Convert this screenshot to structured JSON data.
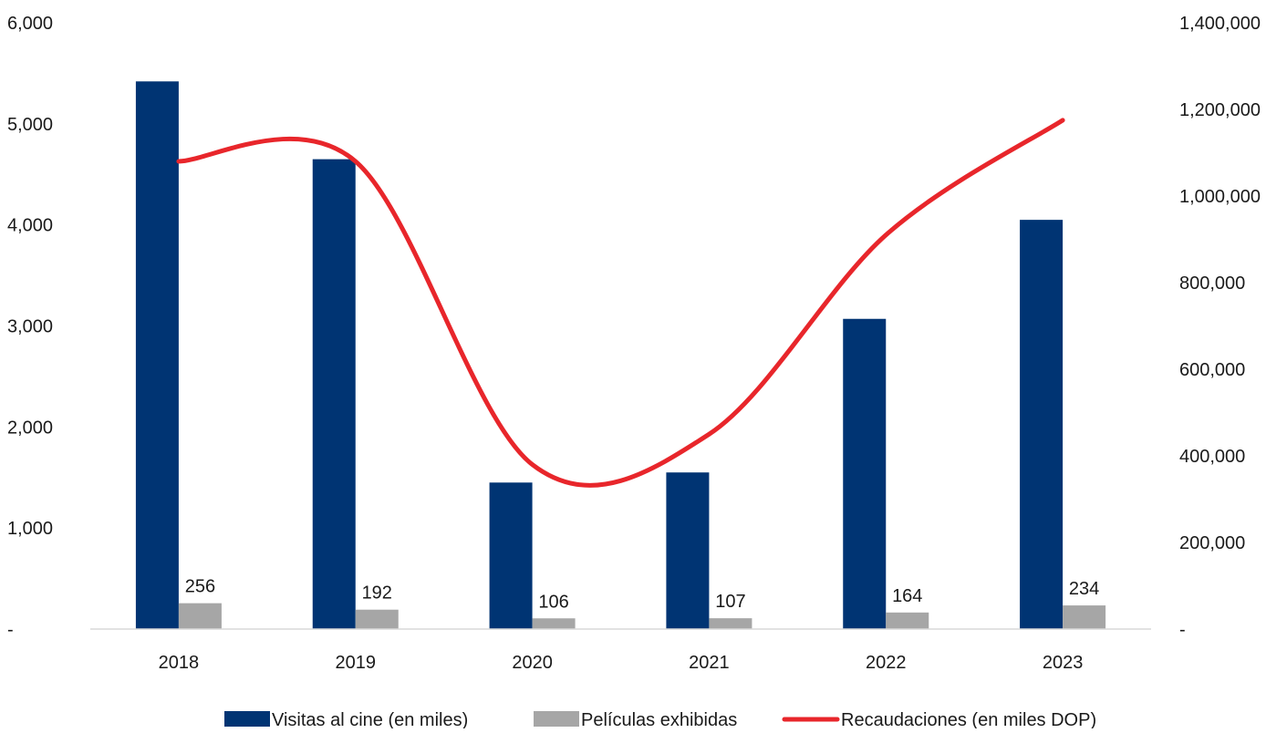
{
  "chart_data": {
    "type": "bar",
    "categories": [
      "2018",
      "2019",
      "2020",
      "2021",
      "2022",
      "2023"
    ],
    "series": [
      {
        "name": "Visitas al cine (en miles)",
        "kind": "bar",
        "axis": "left",
        "color": "#003473",
        "values": [
          5420,
          4650,
          1450,
          1550,
          3070,
          4050
        ]
      },
      {
        "name": "Películas exhibidas",
        "kind": "bar",
        "axis": "left",
        "color": "#a6a6a6",
        "values": [
          256,
          192,
          106,
          107,
          164,
          234
        ],
        "data_labels": [
          "256",
          "192",
          "106",
          "107",
          "164",
          "234"
        ]
      },
      {
        "name": "Recaudaciones (en miles DOP)",
        "kind": "line",
        "axis": "right",
        "color": "#e8262b",
        "values": [
          1080000,
          1080000,
          380000,
          450000,
          910000,
          1175000
        ]
      }
    ],
    "y_left": {
      "min": 0,
      "max": 6000,
      "ticks": [
        0,
        1000,
        2000,
        3000,
        4000,
        5000,
        6000
      ],
      "tick_labels": [
        "-",
        "1,000",
        "2,000",
        "3,000",
        "4,000",
        "5,000",
        "6,000"
      ]
    },
    "y_right": {
      "min": 0,
      "max": 1400000,
      "ticks": [
        0,
        200000,
        400000,
        600000,
        800000,
        1000000,
        1200000,
        1400000
      ],
      "tick_labels": [
        "-",
        "200,000",
        "400,000",
        "600,000",
        "800,000",
        "1,000,000",
        "1,200,000",
        "1,400,000"
      ]
    },
    "grid": false,
    "legend_position": "bottom"
  }
}
